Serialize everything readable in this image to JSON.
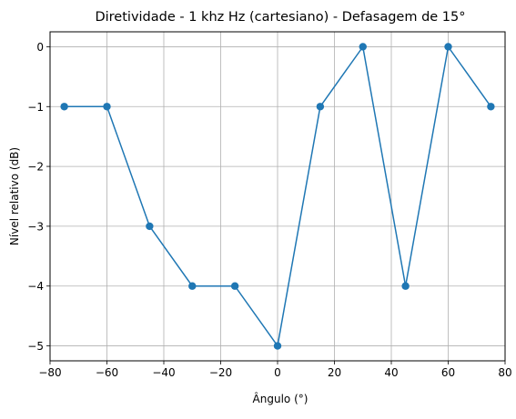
{
  "chart_data": {
    "type": "line",
    "title": "Diretividade - 1 khz Hz (cartesiano) - Defasagem de 15°",
    "xlabel": "Ângulo (°)",
    "ylabel": "Nível relativo (dB)",
    "x": [
      -75,
      -60,
      -45,
      -30,
      -15,
      0,
      15,
      30,
      45,
      60,
      75
    ],
    "series": [
      {
        "values": [
          -1,
          -1,
          -3,
          -4,
          -4,
          -5,
          -1,
          0,
          -4,
          0,
          -1
        ]
      }
    ],
    "xlim": [
      -80,
      80
    ],
    "ylim": [
      -5.25,
      0.25
    ],
    "xticks": [
      -80,
      -60,
      -40,
      -20,
      0,
      20,
      40,
      60,
      80
    ],
    "xtick_labels": [
      "−80",
      "−60",
      "−40",
      "−20",
      "0",
      "20",
      "40",
      "60",
      "80"
    ],
    "yticks": [
      0,
      -1,
      -2,
      -3,
      -4,
      -5
    ],
    "ytick_labels": [
      "0",
      "−1",
      "−2",
      "−3",
      "−4",
      "−5"
    ],
    "grid": true,
    "line_color": "#1f77b4",
    "marker": "circle"
  }
}
